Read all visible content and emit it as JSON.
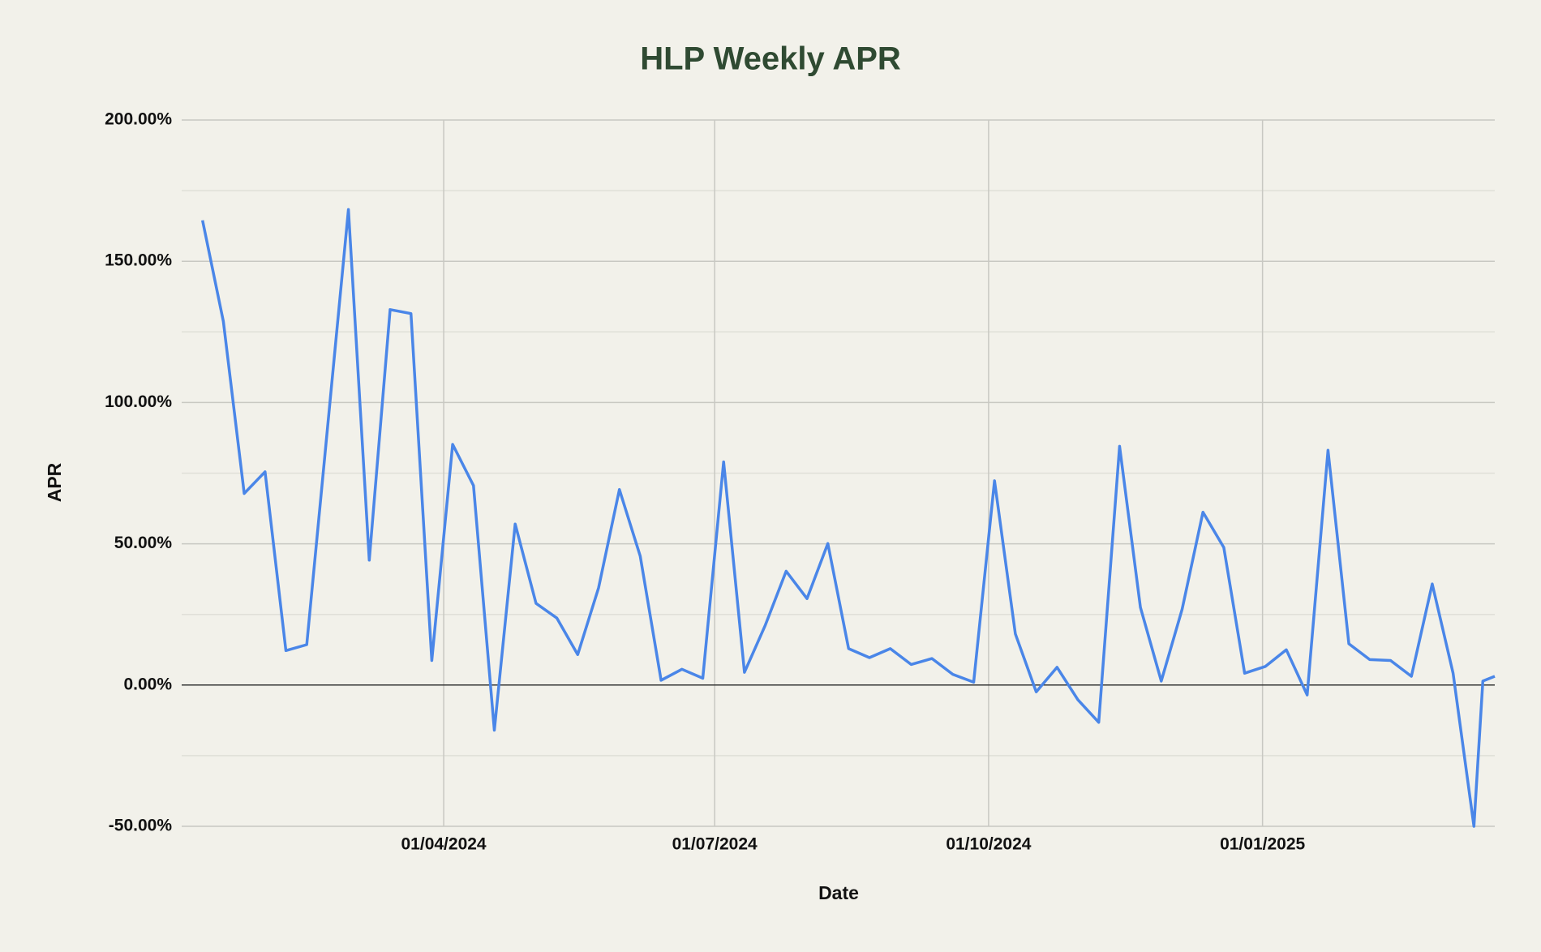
{
  "chart_data": {
    "type": "line",
    "title": "HLP Weekly APR",
    "x_label": "Date",
    "y_label": "APR",
    "x": [
      "2024-01-11",
      "2024-01-18",
      "2024-01-25",
      "2024-02-01",
      "2024-02-08",
      "2024-02-15",
      "2024-02-22",
      "2024-02-29",
      "2024-03-07",
      "2024-03-14",
      "2024-03-21",
      "2024-03-28",
      "2024-04-04",
      "2024-04-11",
      "2024-04-18",
      "2024-04-25",
      "2024-05-02",
      "2024-05-09",
      "2024-05-16",
      "2024-05-23",
      "2024-05-30",
      "2024-06-06",
      "2024-06-13",
      "2024-06-20",
      "2024-06-27",
      "2024-07-04",
      "2024-07-11",
      "2024-07-18",
      "2024-07-25",
      "2024-08-01",
      "2024-08-08",
      "2024-08-15",
      "2024-08-22",
      "2024-08-29",
      "2024-09-05",
      "2024-09-12",
      "2024-09-19",
      "2024-09-26",
      "2024-10-03",
      "2024-10-10",
      "2024-10-17",
      "2024-10-24",
      "2024-10-31",
      "2024-11-07",
      "2024-11-14",
      "2024-11-21",
      "2024-11-28",
      "2024-12-05",
      "2024-12-12",
      "2024-12-19",
      "2024-12-26",
      "2025-01-02",
      "2025-01-09",
      "2025-01-16",
      "2025-01-23",
      "2025-01-30",
      "2025-02-06",
      "2025-02-13",
      "2025-02-20",
      "2025-02-27",
      "2025-03-06",
      "2025-03-13",
      "2025-03-16",
      "2025-03-20"
    ],
    "series": [
      {
        "name": "APR",
        "color": "#4a86e8",
        "values": [
          164.5,
          128.7,
          67.8,
          75.5,
          12.2,
          14.3,
          91.3,
          168.3,
          44.2,
          132.9,
          131.5,
          8.7,
          85.2,
          70.6,
          -16,
          57,
          28.9,
          23.7,
          10.8,
          34.4,
          69.2,
          45.6,
          1.7,
          5.6,
          2.4,
          79,
          4.5,
          21.2,
          40.3,
          30.6,
          50.1,
          12.9,
          9.7,
          12.9,
          7.3,
          9.4,
          3.8,
          1,
          72.3,
          18.1,
          -2.4,
          6.3,
          -5.2,
          -13.2,
          84.5,
          27.5,
          1.4,
          26.8,
          61.2,
          48.7,
          4.2,
          6.6,
          12.5,
          -3.5,
          83.1,
          14.6,
          9,
          8.7,
          3.1,
          35.8,
          4.2,
          -50,
          1.4,
          3.1
        ]
      }
    ],
    "xlim": [
      "2024-01-04",
      "2025-03-20"
    ],
    "xticks": [
      {
        "value": "2024-04-01",
        "label": "01/04/2024"
      },
      {
        "value": "2024-07-01",
        "label": "01/07/2024"
      },
      {
        "value": "2024-10-01",
        "label": "01/10/2024"
      },
      {
        "value": "2025-01-01",
        "label": "01/01/2025"
      }
    ],
    "ylim": [
      -50,
      200
    ],
    "yticks": [
      {
        "value": -50,
        "label": "-50.00%"
      },
      {
        "value": 0,
        "label": "0.00%"
      },
      {
        "value": 50,
        "label": "50.00%"
      },
      {
        "value": 100,
        "label": "100.00%"
      },
      {
        "value": 150,
        "label": "150.00%"
      },
      {
        "value": 200,
        "label": "200.00%"
      }
    ],
    "minor_yticks": [
      -25,
      25,
      75,
      125,
      175
    ],
    "grid": true
  }
}
